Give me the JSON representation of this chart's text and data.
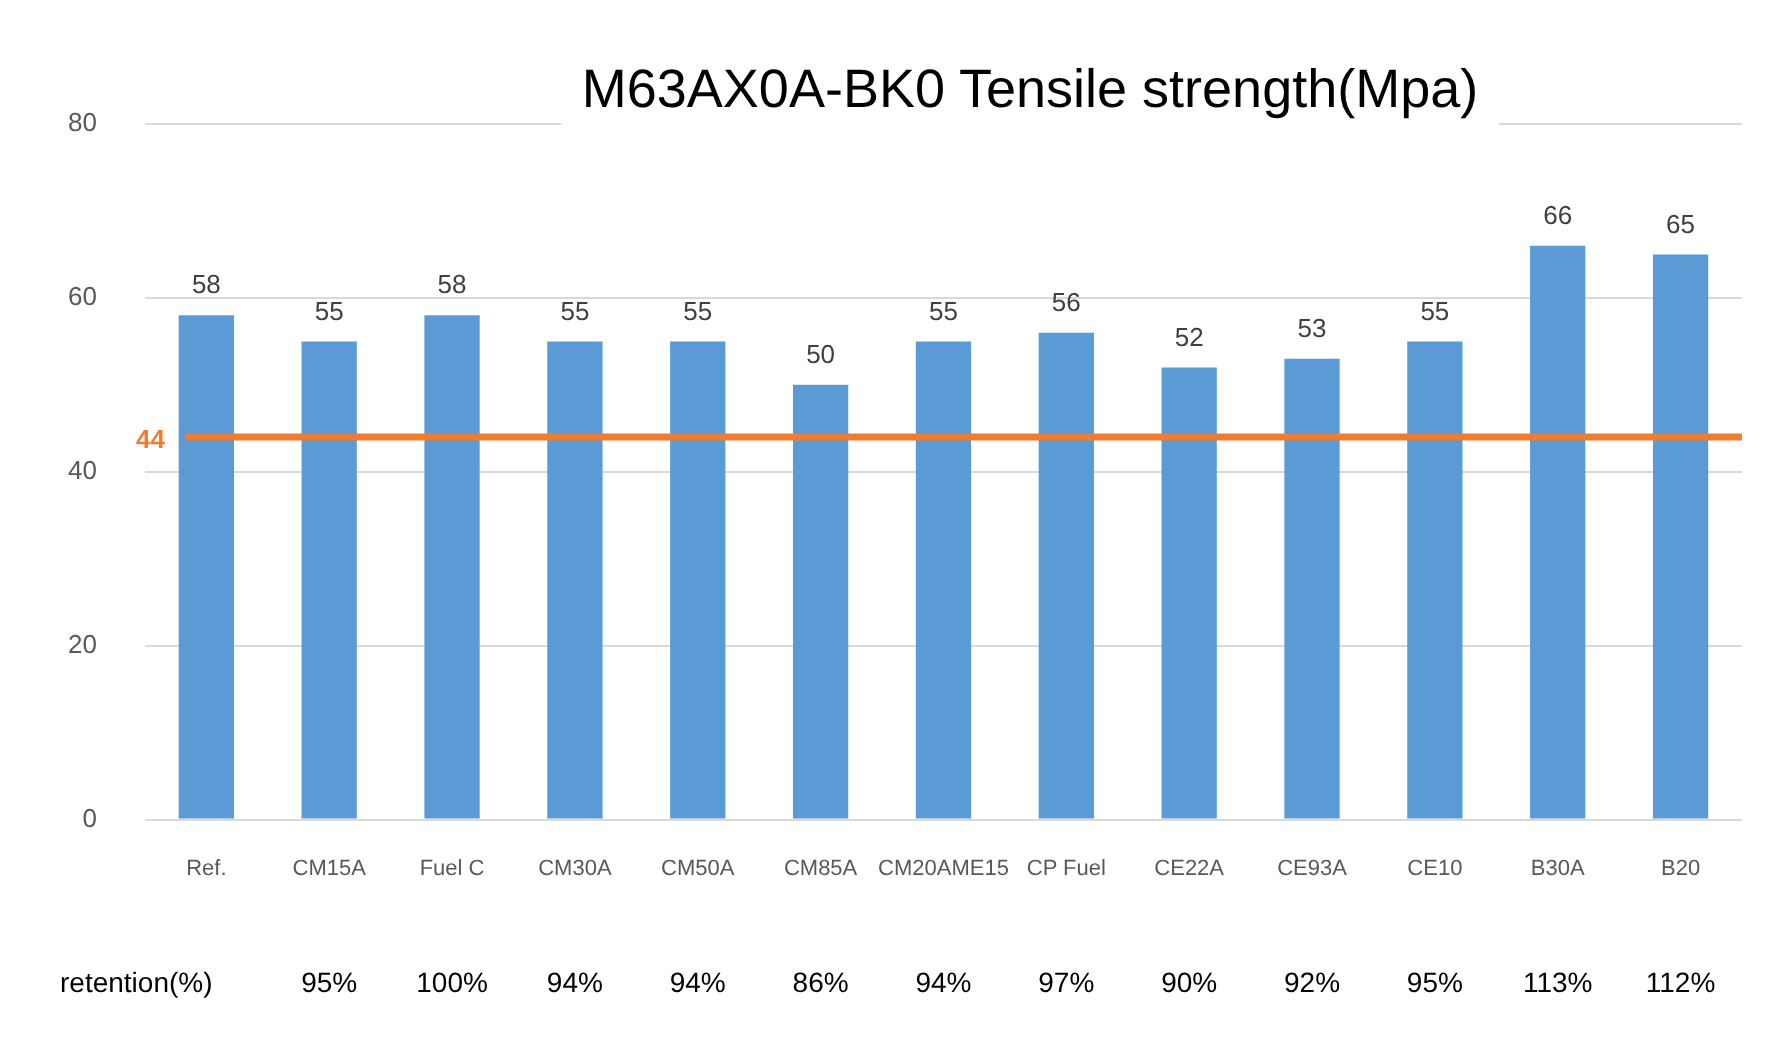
{
  "chart_data": {
    "type": "bar",
    "title": "M63AX0A-BK0 Tensile strength(Mpa)",
    "categories": [
      "Ref.",
      "CM15A",
      "Fuel C",
      "CM30A",
      "CM50A",
      "CM85A",
      "CM20AME15",
      "CP Fuel",
      "CE22A",
      "CE93A",
      "CE10",
      "B30A",
      "B20"
    ],
    "values": [
      58,
      55,
      58,
      55,
      55,
      50,
      55,
      56,
      52,
      53,
      55,
      66,
      65
    ],
    "color": "#5b9bd5",
    "ylim": [
      0,
      80
    ],
    "yticks": [
      0,
      20,
      40,
      60,
      80
    ],
    "grid": "y",
    "legend": false,
    "data_labels": true,
    "ref_lines": [
      {
        "axis": "y",
        "value": 44,
        "label": "44",
        "color": "#ed7d31"
      }
    ],
    "annotations": [
      "retention(%)",
      "95%",
      "100%",
      "94%",
      "94%",
      "86%",
      "94%",
      "97%",
      "90%",
      "92%",
      "95%",
      "113%",
      "112%"
    ]
  }
}
